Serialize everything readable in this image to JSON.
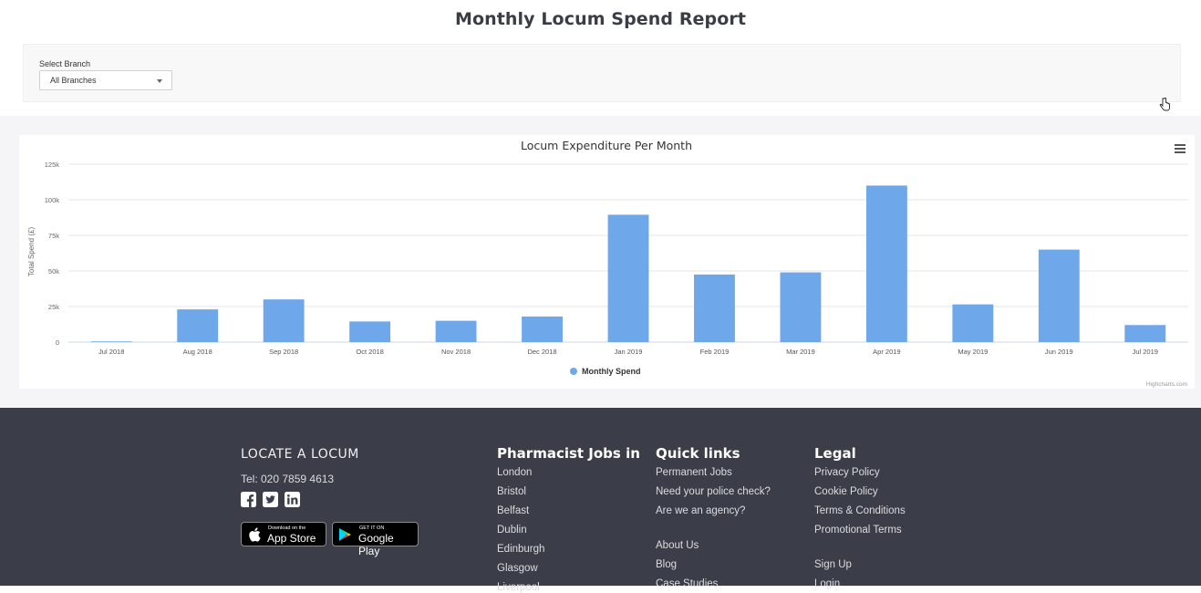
{
  "page": {
    "title": "Monthly Locum Spend Report"
  },
  "filter": {
    "label": "Select Branch",
    "selected": "All Branches"
  },
  "chart_data": {
    "type": "bar",
    "title": "Locum Expenditure Per Month",
    "ylabel": "Total Spend (£)",
    "xlabel": "",
    "ylim": [
      0,
      125000
    ],
    "yticks": [
      "0",
      "25k",
      "50k",
      "75k",
      "100k",
      "125k"
    ],
    "categories": [
      "Jul 2018",
      "Aug 2018",
      "Sep 2018",
      "Oct 2018",
      "Nov 2018",
      "Dec 2018",
      "Jan 2019",
      "Feb 2019",
      "Mar 2019",
      "Apr 2019",
      "May 2019",
      "Jun 2019",
      "Jul 2019"
    ],
    "series": [
      {
        "name": "Monthly Spend",
        "color": "#6fa8ea",
        "values": [
          500,
          23000,
          30000,
          14500,
          15000,
          18000,
          89500,
          47500,
          49000,
          110000,
          26500,
          65000,
          12000
        ]
      }
    ],
    "legend": "bottom-center",
    "credit": "Highcharts.com",
    "grid": true
  },
  "footer": {
    "brand": "LOCATE A LOCUM",
    "tel": "Tel: 020 7859 4613",
    "social_icons": [
      "facebook-icon",
      "twitter-icon",
      "linkedin-icon"
    ],
    "app_store": {
      "small": "Download on the",
      "big": "App Store"
    },
    "google_play": {
      "small": "GET IT ON",
      "big": "Google Play"
    },
    "jobs_heading": "Pharmacist Jobs in",
    "jobs_links": [
      "London",
      "Bristol",
      "Belfast",
      "Dublin",
      "Edinburgh",
      "Glasgow",
      "Liverpool"
    ],
    "quick_heading": "Quick links",
    "quick_links_a": [
      "Permanent Jobs",
      "Need your police check?",
      "Are we an agency?"
    ],
    "quick_links_b": [
      "About Us",
      "Blog",
      "Case Studies"
    ],
    "legal_heading": "Legal",
    "legal_links_a": [
      "Privacy Policy",
      "Cookie Policy",
      "Terms & Conditions",
      "Promotional Terms"
    ],
    "legal_links_b": [
      "Sign Up",
      "Login"
    ]
  },
  "colors": {
    "footer_bg": "#3b3e48",
    "bar": "#6fa8ea",
    "accent_text": "#3a3d45"
  }
}
